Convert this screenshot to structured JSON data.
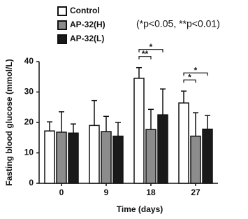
{
  "chart_data": {
    "type": "bar",
    "annotation": "(*p<0.05, **p<0.01)",
    "xlabel": "Time (days)",
    "ylabel": "Fasting blood glucose (mmol/L)",
    "categories": [
      "0",
      "9",
      "18",
      "27"
    ],
    "series": [
      {
        "name": "Control",
        "color": "#ffffff",
        "values": [
          17.2,
          19,
          34.5,
          26.4
        ],
        "errors": [
          3,
          8.2,
          3.5,
          3.9
        ]
      },
      {
        "name": "AP-32(H)",
        "color": "#8c8c8c",
        "values": [
          16.8,
          17,
          17.7,
          15.5
        ],
        "errors": [
          6.7,
          5,
          6.6,
          7.7
        ]
      },
      {
        "name": "AP-32(L)",
        "color": "#1a1a1a",
        "values": [
          16.5,
          15.5,
          22.5,
          17.8
        ],
        "errors": [
          3,
          4.5,
          8.5,
          4.5
        ]
      }
    ],
    "significance": [
      {
        "category": 2,
        "from": 0,
        "to": 1,
        "label": "**"
      },
      {
        "category": 2,
        "from": 0,
        "to": 2,
        "label": "*"
      },
      {
        "category": 3,
        "from": 0,
        "to": 1,
        "label": "*"
      },
      {
        "category": 3,
        "from": 0,
        "to": 2,
        "label": "*"
      }
    ],
    "ylim": [
      0,
      40
    ],
    "yticks": [
      0,
      10,
      20,
      30,
      40
    ]
  }
}
